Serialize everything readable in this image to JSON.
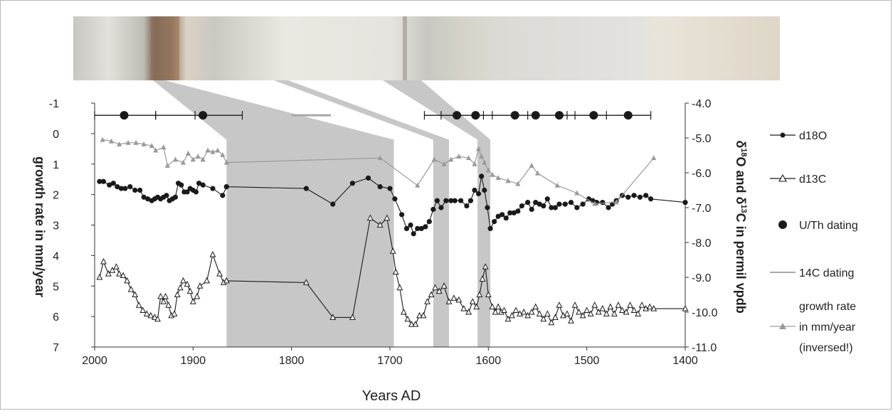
{
  "chart_data": {
    "type": "line",
    "xlabel": "Years AD",
    "ylabel_left": "growth rate in mm/year",
    "ylabel_right_parts": [
      "δ",
      "18",
      "O and ",
      "δ",
      "13",
      "C in permil vpdb"
    ],
    "x_ticks": [
      2000,
      1900,
      1800,
      1700,
      1600,
      1500,
      1400
    ],
    "xlim": [
      2000,
      1400
    ],
    "y_left_ticks": [
      "-1",
      "0",
      "1",
      "2",
      "3",
      "4",
      "5",
      "6",
      "7"
    ],
    "ylim_left": [
      -1,
      7
    ],
    "y_right_ticks": [
      "-4.0",
      "-5.0",
      "-6.0",
      "-7.0",
      "-8.0",
      "-9.0",
      "-10.0",
      "-11.0"
    ],
    "ylim_right": [
      -4,
      -11
    ],
    "legend": {
      "position": "right",
      "entries": [
        {
          "key": "d18o",
          "label": "d18O"
        },
        {
          "key": "d13c",
          "label": "d13C"
        },
        {
          "key": "uth",
          "label": "U/Th dating"
        },
        {
          "key": "c14",
          "label": "14C dating"
        },
        {
          "key": "growth",
          "label_lines": [
            "growth rate",
            "in mm/year",
            "(inversed!)"
          ]
        }
      ]
    },
    "series": [
      {
        "name": "d18O",
        "color": "#1a1a1a",
        "axis": "right",
        "marker": "filled-circle",
        "x": [
          1995,
          1991,
          1985,
          1981,
          1977,
          1973,
          1969,
          1964,
          1959,
          1954,
          1950,
          1946,
          1942,
          1939,
          1936,
          1933,
          1930,
          1927,
          1924,
          1921,
          1918,
          1915,
          1912,
          1909,
          1906,
          1903,
          1900,
          1897,
          1894,
          1890,
          1880,
          1870,
          1866,
          1866,
          1785,
          1758,
          1738,
          1722,
          1710,
          1700,
          1695,
          1688,
          1683,
          1679,
          1676,
          1672,
          1668,
          1664,
          1660,
          1656,
          1652,
          1648,
          1643,
          1638,
          1634,
          1628,
          1622,
          1618,
          1614,
          1610,
          1607,
          1604,
          1601,
          1598,
          1594,
          1590,
          1586,
          1582,
          1578,
          1574,
          1570,
          1566,
          1560,
          1556,
          1552,
          1548,
          1544,
          1540,
          1536,
          1532,
          1528,
          1522,
          1516,
          1510,
          1504,
          1498,
          1494,
          1490,
          1484,
          1478,
          1474,
          1470,
          1464,
          1458,
          1452,
          1446,
          1440,
          1435,
          1400
        ],
        "y": [
          -6.25,
          -6.25,
          -6.35,
          -6.3,
          -6.4,
          -6.45,
          -6.45,
          -6.4,
          -6.5,
          -6.5,
          -6.7,
          -6.75,
          -6.8,
          -6.75,
          -6.7,
          -6.75,
          -6.7,
          -6.65,
          -6.8,
          -6.75,
          -6.7,
          -6.3,
          -6.35,
          -6.55,
          -6.55,
          -6.45,
          -6.5,
          -6.55,
          -6.3,
          -6.35,
          -6.45,
          -6.65,
          -6.4,
          -6.4,
          -6.45,
          -6.9,
          -6.3,
          -6.15,
          -6.4,
          -6.45,
          -6.75,
          -7.2,
          -7.6,
          -7.5,
          -7.75,
          -7.6,
          -7.6,
          -7.55,
          -7.4,
          -7.05,
          -6.8,
          -7.0,
          -6.8,
          -6.8,
          -6.8,
          -6.8,
          -6.95,
          -6.8,
          -6.5,
          -6.6,
          -6.1,
          -6.5,
          -7.0,
          -7.6,
          -7.4,
          -7.25,
          -7.2,
          -7.3,
          -7.15,
          -7.15,
          -7.1,
          -6.95,
          -6.85,
          -7.05,
          -6.85,
          -6.9,
          -6.95,
          -6.75,
          -7.0,
          -7.0,
          -6.9,
          -6.9,
          -6.85,
          -7.0,
          -6.9,
          -6.75,
          -6.8,
          -6.85,
          -6.85,
          -7.0,
          -6.9,
          -6.8,
          -6.65,
          -6.7,
          -6.65,
          -6.7,
          -6.65,
          -6.75,
          -6.85
        ]
      },
      {
        "name": "d13C",
        "color": "#1a1a1a",
        "axis": "right",
        "marker": "open-triangle",
        "x": [
          1995,
          1991,
          1986,
          1982,
          1978,
          1975,
          1971,
          1967,
          1963,
          1959,
          1955,
          1951,
          1947,
          1943,
          1939,
          1936,
          1933,
          1930,
          1928,
          1925,
          1922,
          1919,
          1916,
          1913,
          1910,
          1906,
          1903,
          1900,
          1896,
          1893,
          1886,
          1880,
          1873,
          1869,
          1866,
          1785,
          1758,
          1738,
          1720,
          1710,
          1703,
          1697,
          1694,
          1690,
          1686,
          1682,
          1678,
          1674,
          1670,
          1666,
          1662,
          1658,
          1654,
          1650,
          1645,
          1640,
          1635,
          1630,
          1625,
          1620,
          1616,
          1612,
          1609,
          1606,
          1603,
          1600,
          1596,
          1593,
          1590,
          1587,
          1584,
          1580,
          1576,
          1572,
          1568,
          1564,
          1560,
          1556,
          1552,
          1548,
          1544,
          1540,
          1536,
          1532,
          1528,
          1524,
          1520,
          1516,
          1512,
          1508,
          1504,
          1500,
          1496,
          1492,
          1488,
          1484,
          1480,
          1476,
          1472,
          1468,
          1464,
          1460,
          1456,
          1452,
          1448,
          1444,
          1440,
          1436,
          1432,
          1400
        ],
        "y": [
          -9.0,
          -8.55,
          -8.9,
          -8.8,
          -8.7,
          -8.9,
          -8.95,
          -9.1,
          -9.35,
          -9.5,
          -9.8,
          -9.95,
          -10.05,
          -10.1,
          -10.15,
          -10.2,
          -9.55,
          -9.7,
          -9.55,
          -9.8,
          -10.1,
          -10.05,
          -9.5,
          -9.3,
          -9.1,
          -9.2,
          -9.4,
          -9.7,
          -9.55,
          -9.25,
          -9.1,
          -8.35,
          -8.9,
          -9.15,
          -9.1,
          -9.15,
          -10.15,
          -10.15,
          -7.3,
          -7.5,
          -7.3,
          -8.25,
          -8.85,
          -9.3,
          -10.0,
          -10.2,
          -10.35,
          -10.35,
          -10.1,
          -10.1,
          -9.7,
          -9.5,
          -9.3,
          -9.4,
          -9.25,
          -9.7,
          -9.6,
          -9.65,
          -9.9,
          -10.0,
          -9.7,
          -9.85,
          -9.5,
          -9.05,
          -8.7,
          -9.5,
          -9.85,
          -10.0,
          -9.85,
          -10.0,
          -9.95,
          -10.2,
          -10.1,
          -9.95,
          -10.05,
          -10.0,
          -10.1,
          -10.0,
          -9.85,
          -10.05,
          -10.2,
          -10.05,
          -10.3,
          -10.15,
          -9.8,
          -10.1,
          -10.05,
          -10.25,
          -9.8,
          -10.0,
          -10.1,
          -9.95,
          -10.05,
          -9.8,
          -10.0,
          -9.9,
          -10.05,
          -9.85,
          -10.05,
          -9.8,
          -9.95,
          -10.0,
          -9.8,
          -9.95,
          -10.05,
          -9.8,
          -9.9,
          -9.85,
          -9.9,
          -9.9
        ]
      },
      {
        "name": "growth rate in mm/year (inversed!)",
        "color": "#9a9a9a",
        "axis": "left",
        "marker": "filled-triangle",
        "x": [
          1992,
          1983,
          1975,
          1966,
          1958,
          1950,
          1942,
          1938,
          1930,
          1926,
          1918,
          1910,
          1905,
          1900,
          1895,
          1890,
          1885,
          1880,
          1875,
          1870,
          1866,
          1710,
          1672,
          1655,
          1645,
          1638,
          1630,
          1620,
          1614,
          1610,
          1607,
          1604,
          1600,
          1596,
          1590,
          1580,
          1570,
          1556,
          1550,
          1530,
          1510,
          1492,
          1470,
          1432
        ],
        "y": [
          0.2,
          0.25,
          0.35,
          0.3,
          0.3,
          0.35,
          0.4,
          0.55,
          0.45,
          1.05,
          0.85,
          0.95,
          0.65,
          0.85,
          0.75,
          0.85,
          0.55,
          0.6,
          0.55,
          0.7,
          0.95,
          0.8,
          1.7,
          0.85,
          1.0,
          0.85,
          0.75,
          0.8,
          1.0,
          0.5,
          0.75,
          0.95,
          1.2,
          1.35,
          1.45,
          1.55,
          1.65,
          1.05,
          1.3,
          1.7,
          1.95,
          2.3,
          2.25,
          0.8
        ]
      }
    ],
    "uth_dates": [
      1970,
      1890,
      1632,
      1613,
      1573,
      1552,
      1528,
      1493,
      1458
    ],
    "uth_error_bar_ends": [
      2000,
      1938,
      1850,
      1665,
      1435
    ],
    "uth_bar_ticks": [
      1938,
      1898,
      1648,
      1605,
      1596,
      1560,
      1520,
      1512,
      1480
    ],
    "c14_range": [
      1800,
      1760
    ],
    "shaded_bands": [
      [
        1866,
        1696
      ],
      [
        1656,
        1640
      ],
      [
        1611,
        1598
      ]
    ],
    "grid": false
  }
}
